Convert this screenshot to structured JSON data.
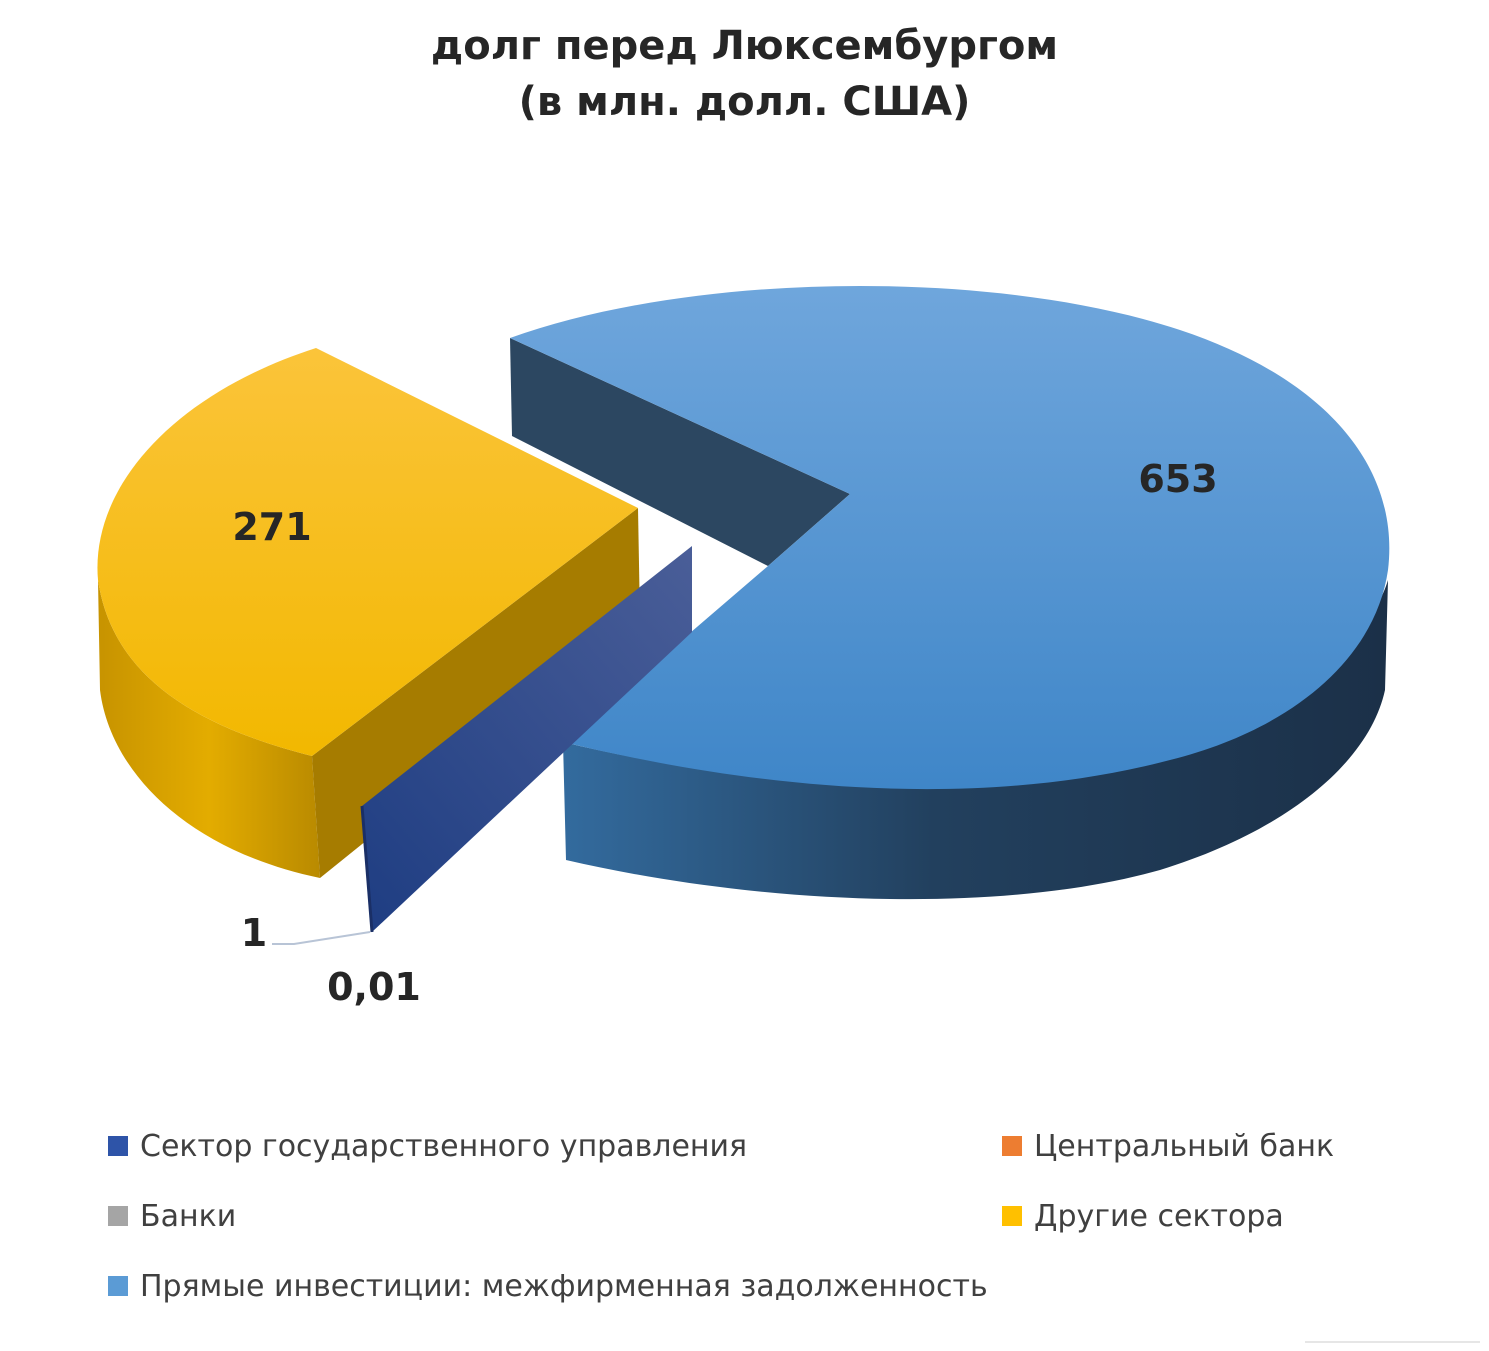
{
  "chart_data": {
    "type": "pie",
    "title_lines": [
      "долг перед Люксембургом",
      "(в млн. долл. США)"
    ],
    "series": [
      {
        "name": "Сектор государственного управления",
        "value": 0.01,
        "label": "0,01",
        "color": "#2E4F9C"
      },
      {
        "name": "Центральный банк",
        "value": 0,
        "label": "",
        "color": "#ED7D31"
      },
      {
        "name": "Банки",
        "value": 1,
        "label": "1",
        "color": "#A5A5A5"
      },
      {
        "name": "Другие сектора",
        "value": 271,
        "label": "271",
        "color": "#FFC000"
      },
      {
        "name": "Прямые инвестиции: межфирменная задолженность",
        "value": 653,
        "label": "653",
        "color": "#5B9BD5"
      }
    ],
    "legend_position": "bottom",
    "style": "3d-exploded"
  }
}
